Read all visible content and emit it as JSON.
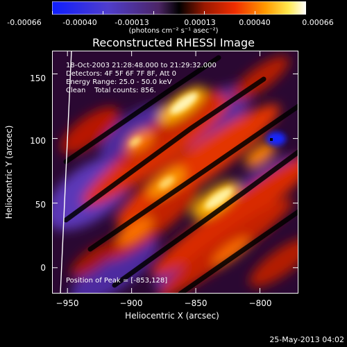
{
  "colorbar": {
    "ticks": [
      "-0.00066",
      "-0.00040",
      "-0.00013",
      "0.00013",
      "0.00040",
      "0.00066"
    ],
    "unit_label": "(photons cm⁻² s⁻¹ asec⁻²)"
  },
  "plot": {
    "title": "Reconstructed RHESSI Image",
    "xlabel": "Heliocentric X (arcsec)",
    "ylabel": "Heliocentric Y (arcsec)",
    "xticks": [
      "−950",
      "−900",
      "−850",
      "−800"
    ],
    "yticks": [
      "0",
      "50",
      "100",
      "150"
    ]
  },
  "annotations": {
    "time": "18-Oct-2003 21:28:48.000 to 21:29:32.000",
    "detectors": "Detectors: 4F 5F 6F 7F 8F, Att 0",
    "energy": "Energy Range: 25.0 - 50.0 keV",
    "method": "Clean    Total counts: 856.",
    "peak": "Position of Peak = [-853,128]"
  },
  "footer": {
    "date": "25-May-2013 04:02"
  },
  "colors": {
    "map_low": "#2a3cff",
    "map_zero": "#000000",
    "map_mid": "#d62d00",
    "map_high": "#fffbe8"
  },
  "chart_data": {
    "type": "heatmap",
    "title": "Reconstructed RHESSI Image",
    "xlabel": "Heliocentric X (arcsec)",
    "ylabel": "Heliocentric Y (arcsec)",
    "xlim": [
      -962,
      -770
    ],
    "ylim": [
      -20,
      168
    ],
    "colorbar_range": [
      -0.00066,
      0.00066
    ],
    "peak": [
      -853,
      128
    ],
    "colormap": "blue-black-red-yellow-white"
  }
}
